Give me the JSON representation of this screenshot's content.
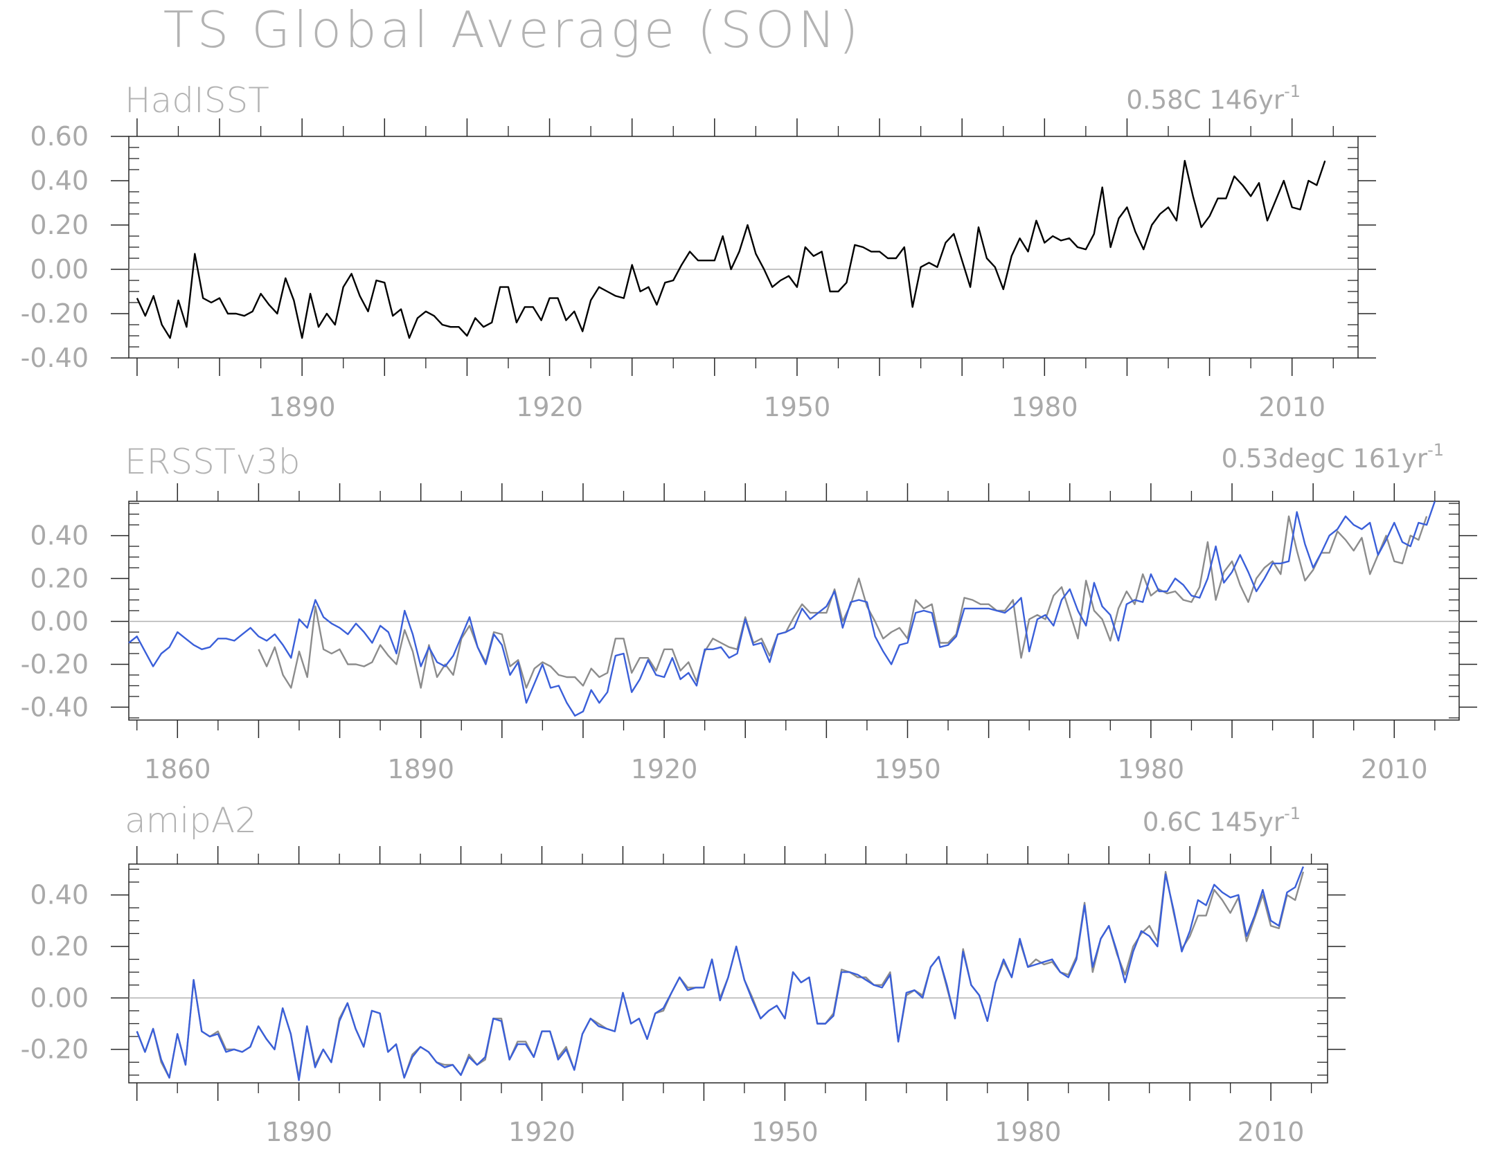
{
  "title": "TS Global Average (SON)",
  "colors": {
    "observed": "#000000",
    "reference_gray": "#8c8c8c",
    "model_blue": "#3a5fd9",
    "frame": "#262626",
    "zero_line": "#b0b0b0",
    "text": "#a9a9a9"
  },
  "chart_data": [
    {
      "type": "line",
      "panel_title": "HadISST",
      "annotation": "0.58C 146yr",
      "annotation_superscript": "-1",
      "x_ticks": [
        1890,
        1920,
        1950,
        1980,
        2010
      ],
      "y_ticks": [
        "0.60",
        "0.40",
        "0.20",
        "0.00",
        "-0.20",
        "-0.40"
      ],
      "y_tick_values": [
        0.6,
        0.4,
        0.2,
        0.0,
        -0.2,
        -0.4
      ],
      "xlim": [
        1869,
        2018
      ],
      "ylim": [
        -0.4,
        0.6
      ],
      "series": [
        {
          "start_year": 1870,
          "color": "#000000",
          "values": [
            -0.13,
            -0.21,
            -0.12,
            -0.25,
            -0.31,
            -0.14,
            -0.26,
            0.07,
            -0.13,
            -0.15,
            -0.13,
            -0.2,
            -0.2,
            -0.21,
            -0.19,
            -0.11,
            -0.16,
            -0.2,
            -0.04,
            -0.14,
            -0.31,
            -0.11,
            -0.26,
            -0.2,
            -0.25,
            -0.08,
            -0.02,
            -0.12,
            -0.19,
            -0.05,
            -0.06,
            -0.21,
            -0.18,
            -0.31,
            -0.22,
            -0.19,
            -0.21,
            -0.25,
            -0.26,
            -0.26,
            -0.3,
            -0.22,
            -0.26,
            -0.24,
            -0.08,
            -0.08,
            -0.24,
            -0.17,
            -0.17,
            -0.23,
            -0.13,
            -0.13,
            -0.23,
            -0.19,
            -0.28,
            -0.14,
            -0.08,
            -0.1,
            -0.12,
            -0.13,
            0.02,
            -0.1,
            -0.08,
            -0.16,
            -0.06,
            -0.05,
            0.02,
            0.08,
            0.04,
            0.04,
            0.04,
            0.15,
            0.0,
            0.08,
            0.2,
            0.07,
            0.0,
            -0.08,
            -0.05,
            -0.03,
            -0.08,
            0.1,
            0.06,
            0.08,
            -0.1,
            -0.1,
            -0.06,
            0.11,
            0.1,
            0.08,
            0.08,
            0.05,
            0.05,
            0.1,
            -0.17,
            0.01,
            0.03,
            0.01,
            0.12,
            0.16,
            0.04,
            -0.08,
            0.19,
            0.05,
            0.01,
            -0.09,
            0.06,
            0.14,
            0.08,
            0.22,
            0.12,
            0.15,
            0.13,
            0.14,
            0.1,
            0.09,
            0.16,
            0.37,
            0.1,
            0.23,
            0.28,
            0.17,
            0.09,
            0.2,
            0.25,
            0.28,
            0.22,
            0.49,
            0.33,
            0.19,
            0.24,
            0.32,
            0.32,
            0.42,
            0.38,
            0.33,
            0.39,
            0.22,
            0.31,
            0.4,
            0.28,
            0.27,
            0.4,
            0.38,
            0.49
          ]
        }
      ]
    },
    {
      "type": "line",
      "panel_title": "ERSSTv3b",
      "annotation": "0.53degC 161yr",
      "annotation_superscript": "-1",
      "x_ticks": [
        1860,
        1890,
        1920,
        1950,
        1980,
        2010
      ],
      "y_ticks": [
        "0.40",
        "0.20",
        "0.00",
        "-0.20",
        "-0.40"
      ],
      "y_tick_values": [
        0.4,
        0.2,
        0.0,
        -0.2,
        -0.4
      ],
      "xlim": [
        1854,
        2018
      ],
      "ylim": [
        -0.46,
        0.56
      ],
      "series": [
        {
          "start_year": 1870,
          "color": "#8c8c8c",
          "values": [
            -0.13,
            -0.21,
            -0.12,
            -0.25,
            -0.31,
            -0.14,
            -0.26,
            0.07,
            -0.13,
            -0.15,
            -0.13,
            -0.2,
            -0.2,
            -0.21,
            -0.19,
            -0.11,
            -0.16,
            -0.2,
            -0.04,
            -0.14,
            -0.31,
            -0.11,
            -0.26,
            -0.2,
            -0.25,
            -0.08,
            -0.02,
            -0.12,
            -0.19,
            -0.05,
            -0.06,
            -0.21,
            -0.18,
            -0.31,
            -0.22,
            -0.19,
            -0.21,
            -0.25,
            -0.26,
            -0.26,
            -0.3,
            -0.22,
            -0.26,
            -0.24,
            -0.08,
            -0.08,
            -0.24,
            -0.17,
            -0.17,
            -0.23,
            -0.13,
            -0.13,
            -0.23,
            -0.19,
            -0.28,
            -0.14,
            -0.08,
            -0.1,
            -0.12,
            -0.13,
            0.02,
            -0.1,
            -0.08,
            -0.16,
            -0.06,
            -0.05,
            0.02,
            0.08,
            0.04,
            0.04,
            0.04,
            0.15,
            0.0,
            0.08,
            0.2,
            0.07,
            0.0,
            -0.08,
            -0.05,
            -0.03,
            -0.08,
            0.1,
            0.06,
            0.08,
            -0.1,
            -0.1,
            -0.06,
            0.11,
            0.1,
            0.08,
            0.08,
            0.05,
            0.05,
            0.1,
            -0.17,
            0.01,
            0.03,
            0.01,
            0.12,
            0.16,
            0.04,
            -0.08,
            0.19,
            0.05,
            0.01,
            -0.09,
            0.06,
            0.14,
            0.08,
            0.22,
            0.12,
            0.15,
            0.13,
            0.14,
            0.1,
            0.09,
            0.16,
            0.37,
            0.1,
            0.23,
            0.28,
            0.17,
            0.09,
            0.2,
            0.25,
            0.28,
            0.22,
            0.49,
            0.33,
            0.19,
            0.24,
            0.32,
            0.32,
            0.42,
            0.38,
            0.33,
            0.39,
            0.22,
            0.31,
            0.4,
            0.28,
            0.27,
            0.4,
            0.38,
            0.49
          ]
        },
        {
          "start_year": 1854,
          "color": "#3a5fd9",
          "values": [
            -0.1,
            -0.07,
            -0.14,
            -0.21,
            -0.15,
            -0.12,
            -0.05,
            -0.08,
            -0.11,
            -0.13,
            -0.12,
            -0.08,
            -0.08,
            -0.09,
            -0.06,
            -0.03,
            -0.07,
            -0.09,
            -0.06,
            -0.11,
            -0.17,
            0.01,
            -0.03,
            0.1,
            0.02,
            -0.01,
            -0.03,
            -0.06,
            -0.01,
            -0.05,
            -0.1,
            -0.02,
            -0.05,
            -0.15,
            0.05,
            -0.06,
            -0.21,
            -0.12,
            -0.19,
            -0.21,
            -0.16,
            -0.07,
            0.02,
            -0.12,
            -0.2,
            -0.06,
            -0.11,
            -0.25,
            -0.19,
            -0.38,
            -0.29,
            -0.2,
            -0.31,
            -0.3,
            -0.38,
            -0.44,
            -0.42,
            -0.32,
            -0.38,
            -0.33,
            -0.16,
            -0.15,
            -0.33,
            -0.27,
            -0.18,
            -0.25,
            -0.26,
            -0.17,
            -0.27,
            -0.24,
            -0.3,
            -0.13,
            -0.13,
            -0.12,
            -0.17,
            -0.15,
            0.01,
            -0.11,
            -0.1,
            -0.19,
            -0.06,
            -0.05,
            -0.03,
            0.06,
            0.01,
            0.04,
            0.07,
            0.14,
            -0.03,
            0.09,
            0.1,
            0.09,
            -0.07,
            -0.14,
            -0.2,
            -0.11,
            -0.1,
            0.04,
            0.05,
            0.04,
            -0.12,
            -0.11,
            -0.07,
            0.06,
            0.06,
            0.06,
            0.06,
            0.05,
            0.04,
            0.07,
            0.11,
            -0.14,
            0.01,
            0.03,
            -0.02,
            0.1,
            0.15,
            0.05,
            -0.02,
            0.18,
            0.07,
            0.03,
            -0.09,
            0.08,
            0.1,
            0.09,
            0.22,
            0.14,
            0.14,
            0.2,
            0.17,
            0.12,
            0.11,
            0.2,
            0.35,
            0.18,
            0.23,
            0.31,
            0.23,
            0.14,
            0.2,
            0.27,
            0.27,
            0.28,
            0.51,
            0.36,
            0.25,
            0.32,
            0.4,
            0.43,
            0.49,
            0.45,
            0.43,
            0.46,
            0.31,
            0.38,
            0.46,
            0.37,
            0.35,
            0.46,
            0.45,
            0.56
          ]
        }
      ]
    },
    {
      "type": "line",
      "panel_title": "amipA2",
      "annotation": "0.6C 145yr",
      "annotation_superscript": "-1",
      "x_ticks": [
        1890,
        1920,
        1950,
        1980,
        2010
      ],
      "y_ticks": [
        "0.40",
        "0.20",
        "0.00",
        "-0.20"
      ],
      "y_tick_values": [
        0.4,
        0.2,
        0.0,
        -0.2
      ],
      "xlim": [
        1869,
        2017
      ],
      "ylim": [
        -0.33,
        0.52
      ],
      "series": [
        {
          "start_year": 1870,
          "color": "#8c8c8c",
          "values": [
            -0.13,
            -0.21,
            -0.12,
            -0.25,
            -0.31,
            -0.14,
            -0.26,
            0.07,
            -0.13,
            -0.15,
            -0.13,
            -0.2,
            -0.2,
            -0.21,
            -0.19,
            -0.11,
            -0.16,
            -0.2,
            -0.04,
            -0.14,
            -0.31,
            -0.11,
            -0.26,
            -0.2,
            -0.25,
            -0.08,
            -0.02,
            -0.12,
            -0.19,
            -0.05,
            -0.06,
            -0.21,
            -0.18,
            -0.31,
            -0.22,
            -0.19,
            -0.21,
            -0.25,
            -0.26,
            -0.26,
            -0.3,
            -0.22,
            -0.26,
            -0.24,
            -0.08,
            -0.08,
            -0.24,
            -0.17,
            -0.17,
            -0.23,
            -0.13,
            -0.13,
            -0.23,
            -0.19,
            -0.28,
            -0.14,
            -0.08,
            -0.1,
            -0.12,
            -0.13,
            0.02,
            -0.1,
            -0.08,
            -0.16,
            -0.06,
            -0.05,
            0.02,
            0.08,
            0.04,
            0.04,
            0.04,
            0.15,
            0.0,
            0.08,
            0.2,
            0.07,
            0.0,
            -0.08,
            -0.05,
            -0.03,
            -0.08,
            0.1,
            0.06,
            0.08,
            -0.1,
            -0.1,
            -0.06,
            0.11,
            0.1,
            0.08,
            0.08,
            0.05,
            0.05,
            0.1,
            -0.17,
            0.01,
            0.03,
            0.01,
            0.12,
            0.16,
            0.04,
            -0.08,
            0.19,
            0.05,
            0.01,
            -0.09,
            0.06,
            0.14,
            0.08,
            0.22,
            0.12,
            0.15,
            0.13,
            0.14,
            0.1,
            0.09,
            0.16,
            0.37,
            0.1,
            0.23,
            0.28,
            0.17,
            0.09,
            0.2,
            0.25,
            0.28,
            0.22,
            0.49,
            0.33,
            0.19,
            0.24,
            0.32,
            0.32,
            0.42,
            0.38,
            0.33,
            0.39,
            0.22,
            0.31,
            0.4,
            0.28,
            0.27,
            0.4,
            0.38,
            0.49
          ]
        },
        {
          "start_year": 1870,
          "color": "#3a5fd9",
          "values": [
            -0.13,
            -0.21,
            -0.12,
            -0.24,
            -0.31,
            -0.14,
            -0.26,
            0.07,
            -0.13,
            -0.15,
            -0.14,
            -0.21,
            -0.2,
            -0.21,
            -0.19,
            -0.11,
            -0.16,
            -0.2,
            -0.04,
            -0.14,
            -0.32,
            -0.11,
            -0.27,
            -0.2,
            -0.25,
            -0.09,
            -0.02,
            -0.12,
            -0.19,
            -0.05,
            -0.06,
            -0.21,
            -0.18,
            -0.31,
            -0.23,
            -0.19,
            -0.21,
            -0.25,
            -0.27,
            -0.26,
            -0.3,
            -0.23,
            -0.26,
            -0.23,
            -0.08,
            -0.09,
            -0.24,
            -0.18,
            -0.18,
            -0.23,
            -0.13,
            -0.13,
            -0.24,
            -0.2,
            -0.28,
            -0.14,
            -0.08,
            -0.11,
            -0.12,
            -0.13,
            0.02,
            -0.1,
            -0.08,
            -0.16,
            -0.06,
            -0.04,
            0.02,
            0.08,
            0.03,
            0.04,
            0.04,
            0.15,
            -0.01,
            0.08,
            0.2,
            0.07,
            -0.01,
            -0.08,
            -0.05,
            -0.03,
            -0.08,
            0.1,
            0.06,
            0.08,
            -0.1,
            -0.1,
            -0.07,
            0.1,
            0.1,
            0.09,
            0.07,
            0.05,
            0.04,
            0.09,
            -0.17,
            0.02,
            0.03,
            0.0,
            0.12,
            0.16,
            0.05,
            -0.08,
            0.18,
            0.05,
            0.01,
            -0.09,
            0.06,
            0.15,
            0.08,
            0.23,
            0.12,
            0.13,
            0.14,
            0.15,
            0.1,
            0.08,
            0.15,
            0.36,
            0.12,
            0.23,
            0.28,
            0.18,
            0.06,
            0.18,
            0.26,
            0.24,
            0.2,
            0.48,
            0.34,
            0.18,
            0.26,
            0.38,
            0.36,
            0.44,
            0.41,
            0.39,
            0.4,
            0.24,
            0.32,
            0.42,
            0.3,
            0.28,
            0.41,
            0.43,
            0.51
          ]
        }
      ]
    }
  ]
}
